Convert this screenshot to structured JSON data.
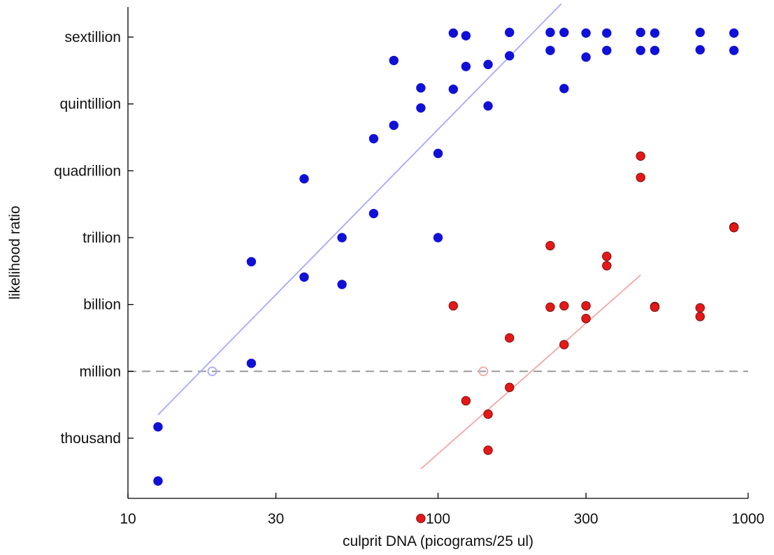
{
  "chart_data": {
    "type": "scatter",
    "title": "",
    "xlabel": "culprit DNA (picograms/25 ul)",
    "ylabel": "likelihood ratio",
    "xscale": "log",
    "xlim": [
      10,
      1000
    ],
    "ylim": [
      -0.9,
      6.45
    ],
    "grid": false,
    "legend": "none",
    "xticks": [
      {
        "value": 10,
        "label": "10"
      },
      {
        "value": 30,
        "label": "30"
      },
      {
        "value": 100,
        "label": "100"
      },
      {
        "value": 300,
        "label": "300"
      },
      {
        "value": 1000,
        "label": "1000"
      }
    ],
    "yticks": [
      {
        "value": 0,
        "label": "thousand"
      },
      {
        "value": 1,
        "label": "million"
      },
      {
        "value": 2,
        "label": "billion"
      },
      {
        "value": 3,
        "label": "trillion"
      },
      {
        "value": 4,
        "label": "quadrillion"
      },
      {
        "value": 5,
        "label": "quintillion"
      },
      {
        "value": 6,
        "label": "sextillion"
      }
    ],
    "reference_line": {
      "y": 1,
      "style": "dashed",
      "color": "#9a9a9a"
    },
    "series": [
      {
        "color": "#1010d8",
        "edge": "#1010d8",
        "fit_color": "#a8a8ff",
        "fit": [
          [
            12.5,
            0.35
          ],
          [
            250,
            6.5
          ]
        ],
        "crossing": [
          18.7,
          1.0
        ],
        "points": [
          [
            12.5,
            0.17
          ],
          [
            12.5,
            -0.64
          ],
          [
            25,
            1.12
          ],
          [
            25,
            2.64
          ],
          [
            37,
            2.41
          ],
          [
            37,
            3.88
          ],
          [
            49,
            3.0
          ],
          [
            49,
            2.3
          ],
          [
            62,
            3.36
          ],
          [
            62,
            4.48
          ],
          [
            72,
            4.68
          ],
          [
            72,
            5.65
          ],
          [
            88,
            5.24
          ],
          [
            88,
            4.94
          ],
          [
            100,
            4.26
          ],
          [
            100,
            3.0
          ],
          [
            112,
            5.22
          ],
          [
            112,
            6.06
          ],
          [
            123,
            5.56
          ],
          [
            123,
            6.02
          ],
          [
            145,
            4.97
          ],
          [
            145,
            5.59
          ],
          [
            170,
            5.72
          ],
          [
            170,
            6.07
          ],
          [
            230,
            5.8
          ],
          [
            230,
            6.07
          ],
          [
            255,
            5.23
          ],
          [
            255,
            6.07
          ],
          [
            300,
            5.7
          ],
          [
            300,
            6.06
          ],
          [
            350,
            5.8
          ],
          [
            350,
            6.06
          ],
          [
            450,
            5.8
          ],
          [
            450,
            6.07
          ],
          [
            500,
            5.8
          ],
          [
            500,
            6.06
          ],
          [
            700,
            5.81
          ],
          [
            700,
            6.07
          ],
          [
            900,
            5.8
          ],
          [
            900,
            6.06
          ]
        ]
      },
      {
        "color": "#e51818",
        "edge": "#7a1010",
        "fit_color": "#f4a6a6",
        "fit": [
          [
            88,
            -0.46
          ],
          [
            450,
            2.44
          ]
        ],
        "crossing": [
          140,
          1.0
        ],
        "points": [
          [
            88,
            -1.2
          ],
          [
            112,
            1.98
          ],
          [
            123,
            0.56
          ],
          [
            145,
            0.36
          ],
          [
            145,
            -0.18
          ],
          [
            170,
            0.76
          ],
          [
            170,
            1.5
          ],
          [
            230,
            2.88
          ],
          [
            230,
            1.96
          ],
          [
            255,
            1.98
          ],
          [
            255,
            1.4
          ],
          [
            300,
            1.98
          ],
          [
            300,
            1.79
          ],
          [
            350,
            2.72
          ],
          [
            350,
            2.58
          ],
          [
            450,
            4.22
          ],
          [
            450,
            3.9
          ],
          [
            500,
            1.97
          ],
          [
            500,
            1.96
          ],
          [
            700,
            1.95
          ],
          [
            700,
            1.82
          ],
          [
            900,
            3.16
          ],
          [
            900,
            3.15
          ]
        ]
      }
    ]
  }
}
